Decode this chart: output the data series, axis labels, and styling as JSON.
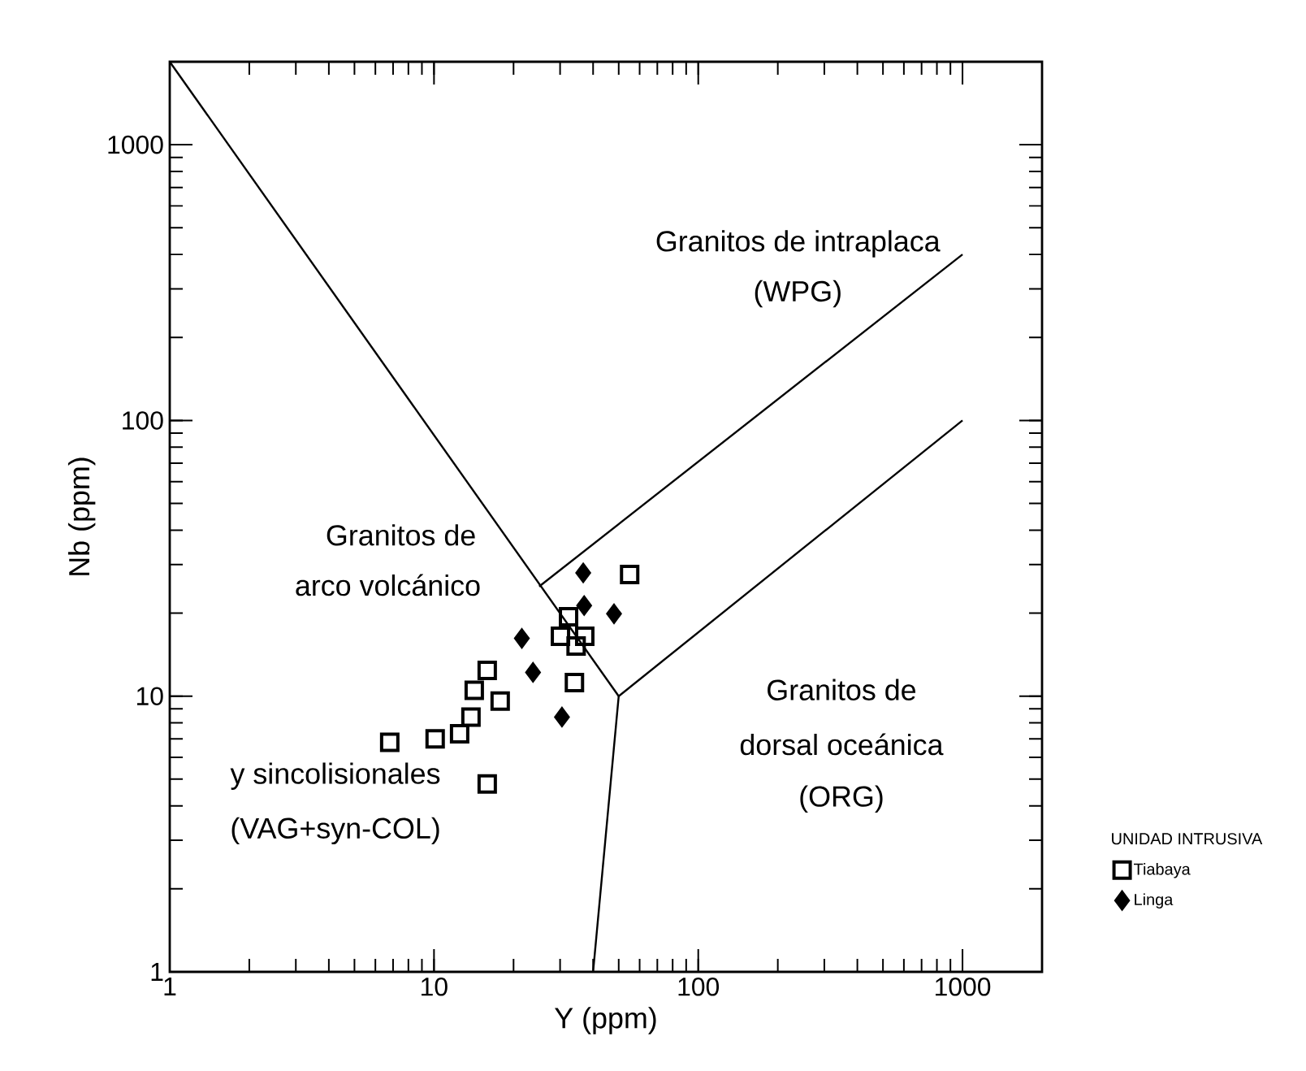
{
  "chart_data": {
    "type": "scatter",
    "xlabel": "Y (ppm)",
    "ylabel": "Nb (ppm)",
    "log": "xy",
    "xlim": [
      1,
      2000
    ],
    "ylim": [
      1,
      2000
    ],
    "xticks": [
      1,
      10,
      100,
      1000
    ],
    "yticks": [
      1,
      10,
      100,
      1000
    ],
    "legend": "right",
    "legend_title": "UNIDAD INTRUSIVA",
    "annotations": [
      "Granitos de intraplaca",
      "(WPG)",
      "Granitos de",
      "arco volcánico",
      "y sincolisionales",
      "(VAG+syn-COL)",
      "Granitos de",
      "dorsal oceánica",
      "(ORG)"
    ],
    "series": [
      {
        "name": "Tiabaya",
        "color": "#000000",
        "marker": "square",
        "x": [
          55,
          34,
          32.3,
          37.2,
          30.1,
          34.5,
          15.9,
          14.2,
          17.8,
          13.8,
          12.5,
          10.1,
          6.8,
          15.9
        ],
        "values": [
          27.6,
          11.2,
          19.4,
          16.5,
          16.5,
          15.2,
          12.4,
          10.5,
          9.6,
          8.4,
          7.3,
          7.0,
          6.8,
          4.8
        ]
      },
      {
        "name": "Linga",
        "color": "#000000",
        "marker": "diamond",
        "x": [
          36.7,
          21.5,
          23.7,
          30.5,
          48,
          37
        ],
        "values": [
          28,
          16.2,
          12.2,
          8.4,
          19.9,
          21.3
        ]
      },
      {
        "type": "line",
        "color": "#000000",
        "marker": "none",
        "x": [
          1,
          50
        ],
        "values": [
          2000,
          10
        ]
      },
      {
        "type": "line",
        "color": "#000000",
        "marker": "none",
        "x": [
          50,
          1000
        ],
        "values": [
          10,
          100
        ]
      },
      {
        "type": "line",
        "color": "#000000",
        "marker": "none",
        "x": [
          25,
          1000
        ],
        "values": [
          25,
          400
        ]
      },
      {
        "type": "line",
        "color": "#000000",
        "marker": "none",
        "x": [
          50,
          40
        ],
        "values": [
          10,
          1
        ]
      }
    ]
  }
}
